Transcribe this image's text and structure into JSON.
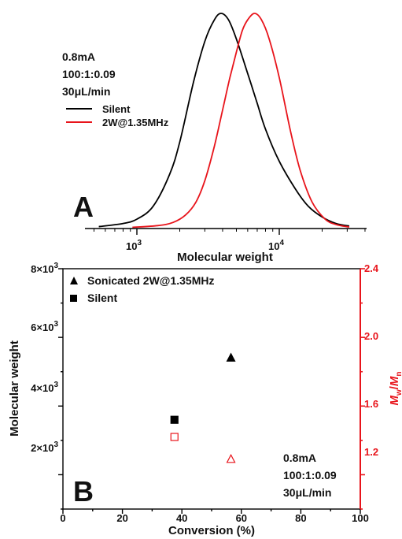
{
  "chart_data": [
    {
      "panel_letter": "A",
      "type": "line",
      "xlabel": "Molecular weight",
      "x_scale": "log",
      "xlim": [
        350,
        40000
      ],
      "x_tick_labels": [
        {
          "base": "10",
          "exp": "3",
          "value": 1000
        },
        {
          "base": "10",
          "exp": "4",
          "value": 10000
        }
      ],
      "y_axis_shown": false,
      "annotation_lines": [
        "0.8mA",
        "100:1:0.09",
        "30μL/min"
      ],
      "legend_position": "top-left",
      "series": [
        {
          "name": "Silent",
          "color": "#000000",
          "points": [
            [
              540,
              0.005
            ],
            [
              800,
              0.02
            ],
            [
              1000,
              0.04
            ],
            [
              1300,
              0.1
            ],
            [
              1700,
              0.25
            ],
            [
              2000,
              0.4
            ],
            [
              2500,
              0.68
            ],
            [
              3000,
              0.87
            ],
            [
              3500,
              0.97
            ],
            [
              3900,
              1.0
            ],
            [
              4400,
              0.97
            ],
            [
              5000,
              0.88
            ],
            [
              6000,
              0.72
            ],
            [
              7000,
              0.58
            ],
            [
              8000,
              0.46
            ],
            [
              10000,
              0.31
            ],
            [
              13000,
              0.18
            ],
            [
              16000,
              0.1
            ],
            [
              20000,
              0.05
            ],
            [
              25000,
              0.02
            ],
            [
              31000,
              0.008
            ]
          ]
        },
        {
          "name": "2W@1.35MHz",
          "color": "#e8141b",
          "points": [
            [
              930,
              0.002
            ],
            [
              1400,
              0.01
            ],
            [
              1800,
              0.025
            ],
            [
              2200,
              0.06
            ],
            [
              2600,
              0.12
            ],
            [
              3000,
              0.22
            ],
            [
              3500,
              0.38
            ],
            [
              4000,
              0.55
            ],
            [
              4500,
              0.7
            ],
            [
              5000,
              0.82
            ],
            [
              5500,
              0.92
            ],
            [
              6000,
              0.97
            ],
            [
              6700,
              1.0
            ],
            [
              7500,
              0.97
            ],
            [
              8500,
              0.88
            ],
            [
              10000,
              0.7
            ],
            [
              12000,
              0.45
            ],
            [
              14000,
              0.27
            ],
            [
              17000,
              0.12
            ],
            [
              21000,
              0.04
            ],
            [
              25000,
              0.015
            ],
            [
              31000,
              0.003
            ]
          ]
        }
      ]
    },
    {
      "panel_letter": "B",
      "type": "scatter",
      "xlabel": "Conversion (%)",
      "ylabel": "Molecular weight",
      "xlim": [
        0,
        100
      ],
      "ylim": [
        1000,
        8000
      ],
      "x_ticks": [
        "0",
        "20",
        "40",
        "60",
        "80",
        "100"
      ],
      "y_tick_labels": [
        {
          "base": "2×10",
          "exp": "3",
          "value": 2000
        },
        {
          "base": "4×10",
          "exp": "3",
          "value": 4000
        },
        {
          "base": "6×10",
          "exp": "3",
          "value": 6000
        },
        {
          "base": "8×10",
          "exp": "3",
          "value": 8000
        }
      ],
      "y2_label": {
        "M": "M",
        "w": "w",
        "slash": "/",
        "n": "n"
      },
      "y2_lim": [
        1.0,
        2.4
      ],
      "y2_ticks": [
        "1.2",
        "1.6",
        "2.0",
        "2.4"
      ],
      "y2_color": "#e8141b",
      "legend_position": "top-left",
      "legend": [
        {
          "name": "Sonicated 2W@1.35MHz",
          "marker": "triangle"
        },
        {
          "name": "Silent",
          "marker": "square"
        }
      ],
      "annotation_lines": [
        "0.8mA",
        "100:1:0.09",
        "30μL/min"
      ],
      "series": [
        {
          "name": "Sonicated 2W@1.35MHz",
          "axis": "left",
          "marker": "triangle",
          "filled": true,
          "color": "#000000",
          "x": [
            56.5
          ],
          "y": [
            5400
          ]
        },
        {
          "name": "Silent",
          "axis": "left",
          "marker": "square",
          "filled": true,
          "color": "#000000",
          "x": [
            37.5
          ],
          "y": [
            3600
          ]
        },
        {
          "name": "Silent Mw/Mn",
          "axis": "right",
          "marker": "square",
          "filled": false,
          "color": "#e8141b",
          "x": [
            37.5
          ],
          "y": [
            1.42
          ]
        },
        {
          "name": "Sonicated Mw/Mn",
          "axis": "right",
          "marker": "triangle",
          "filled": false,
          "color": "#e8141b",
          "x": [
            56.5
          ],
          "y": [
            1.29
          ]
        }
      ]
    }
  ]
}
